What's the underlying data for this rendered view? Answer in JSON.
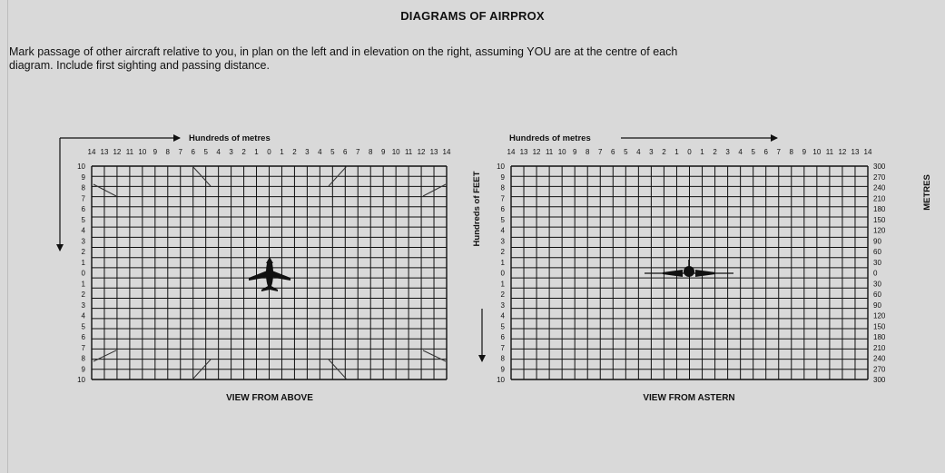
{
  "title": "DIAGRAMS OF AIRPROX",
  "instructions": "Mark passage of other aircraft relative to you, in plan on the left and in elevation on the right, assuming YOU are at the centre of each\ndiagram. Include first sighting and passing distance.",
  "left": {
    "axis_title": "Hundreds of metres",
    "top_ticks": [
      "14",
      "13",
      "12",
      "11",
      "10",
      "9",
      "8",
      "7",
      "6",
      "5",
      "4",
      "3",
      "2",
      "1",
      "0",
      "1",
      "2",
      "3",
      "4",
      "5",
      "6",
      "7",
      "8",
      "9",
      "10",
      "11",
      "12",
      "13",
      "14"
    ],
    "left_ticks": [
      "10",
      "9",
      "8",
      "7",
      "6",
      "5",
      "4",
      "3",
      "2",
      "1",
      "0",
      "1",
      "2",
      "3",
      "4",
      "5",
      "6",
      "7",
      "8",
      "9",
      "10"
    ],
    "caption": "VIEW FROM ABOVE",
    "aircraft_icon": "airplane-top-view-icon"
  },
  "right": {
    "axis_title": "Hundreds of metres",
    "left_axis_title": "Hundreds of FEET",
    "right_axis_title": "METRES",
    "top_ticks": [
      "14",
      "13",
      "12",
      "11",
      "10",
      "9",
      "8",
      "7",
      "6",
      "5",
      "4",
      "3",
      "2",
      "1",
      "0",
      "1",
      "2",
      "3",
      "4",
      "5",
      "6",
      "7",
      "8",
      "9",
      "10",
      "11",
      "12",
      "13",
      "14"
    ],
    "left_ticks": [
      "10",
      "9",
      "8",
      "7",
      "6",
      "5",
      "4",
      "3",
      "2",
      "1",
      "0",
      "1",
      "2",
      "3",
      "4",
      "5",
      "6",
      "7",
      "8",
      "9",
      "10"
    ],
    "right_ticks": [
      "300",
      "270",
      "240",
      "210",
      "180",
      "150",
      "120",
      "90",
      "60",
      "30",
      "0",
      "30",
      "60",
      "90",
      "120",
      "150",
      "180",
      "210",
      "240",
      "270",
      "300"
    ],
    "caption": "VIEW FROM ASTERN",
    "aircraft_icon": "airplane-rear-view-icon"
  }
}
